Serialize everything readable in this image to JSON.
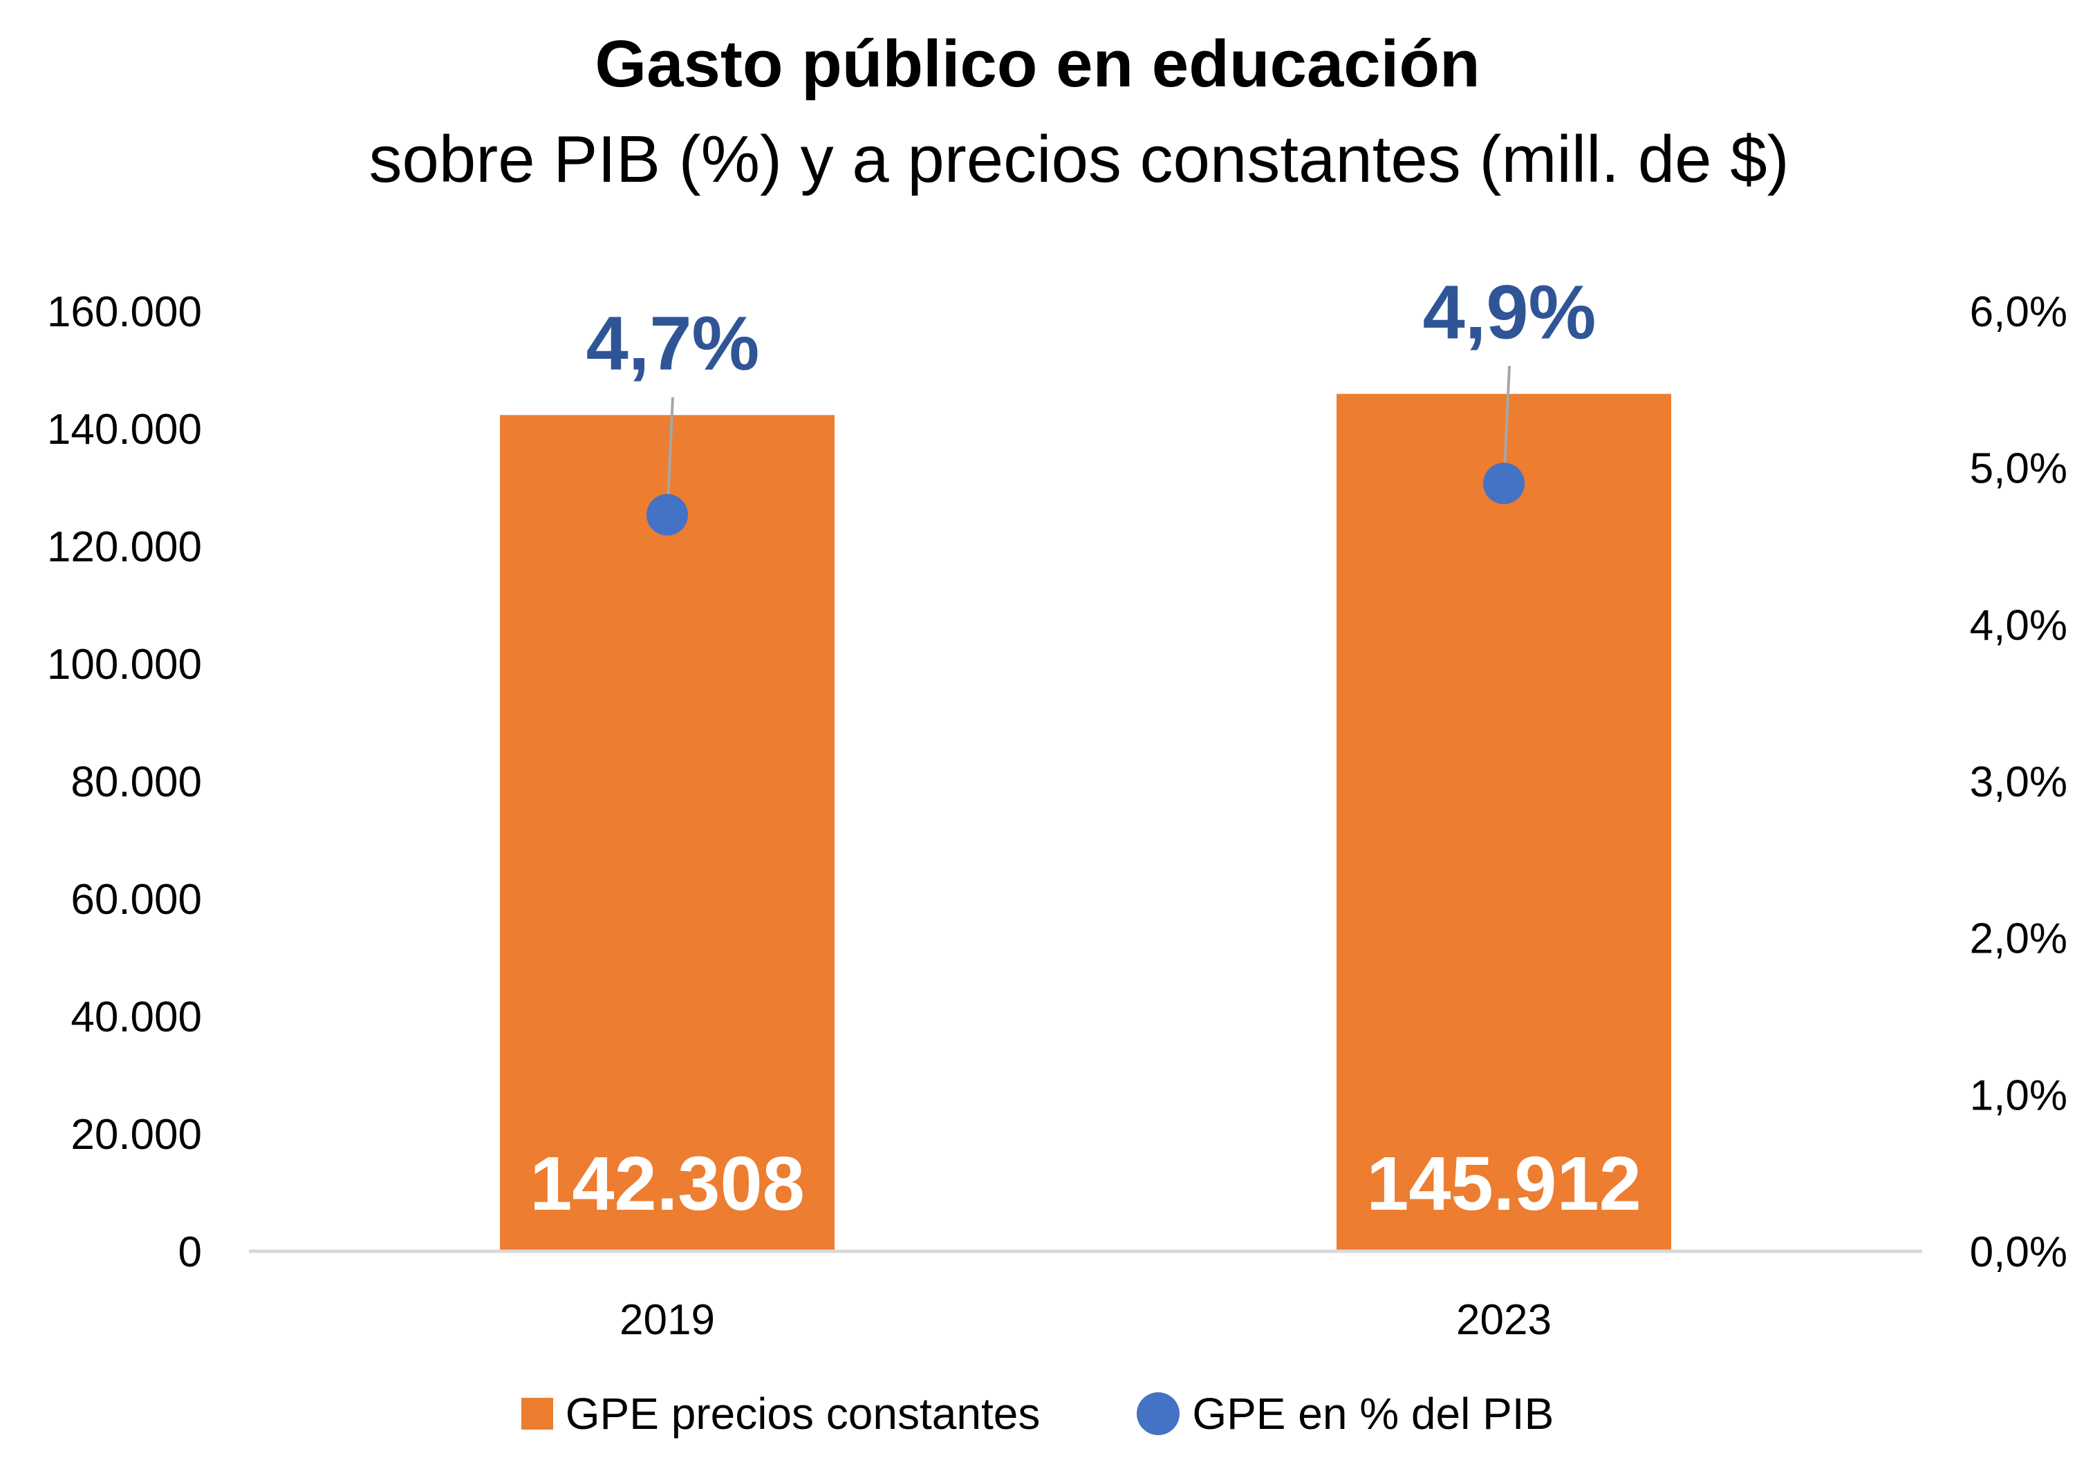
{
  "chart_data": {
    "type": "bar",
    "title": "Gasto público en educación",
    "subtitle": "sobre PIB (%) y a precios constantes (mill. de $)",
    "categories": [
      "2019",
      "2023"
    ],
    "series": [
      {
        "name": "GPE precios constantes",
        "type": "bar",
        "axis": "left",
        "values": [
          142308,
          145912
        ],
        "labels": [
          "142.308",
          "145.912"
        ],
        "color": "#ed7d31"
      },
      {
        "name": "GPE en % del PIB",
        "type": "scatter",
        "axis": "right",
        "values": [
          4.7,
          4.9
        ],
        "labels": [
          "4,7%",
          "4,9%"
        ],
        "color": "#4472c4",
        "label_color": "#2f5597"
      }
    ],
    "y_left": {
      "lim": [
        0,
        160000
      ],
      "ticks": [
        "0",
        "20.000",
        "40.000",
        "60.000",
        "80.000",
        "100.000",
        "120.000",
        "140.000",
        "160.000"
      ]
    },
    "y_right": {
      "lim": [
        0,
        6
      ],
      "ticks": [
        "0,0%",
        "1,0%",
        "2,0%",
        "3,0%",
        "4,0%",
        "5,0%",
        "6,0%"
      ]
    },
    "grid": false,
    "legend": "bottom-center"
  }
}
